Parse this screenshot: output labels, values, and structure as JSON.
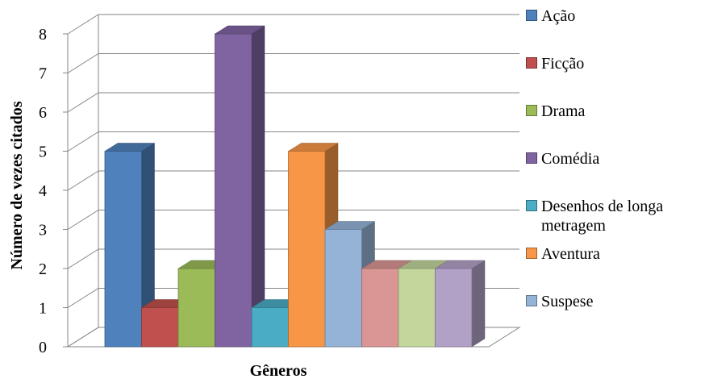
{
  "chart_data": {
    "type": "bar",
    "title": "",
    "xlabel": "Gêneros",
    "ylabel": "Número de vezes citados",
    "ylim": [
      0,
      8
    ],
    "yticks": [
      0,
      1,
      2,
      3,
      4,
      5,
      6,
      7,
      8
    ],
    "grid": true,
    "three_d": true,
    "legend_position": "right",
    "series": [
      {
        "name": "Ação",
        "value": 5,
        "color": "#4F81BD"
      },
      {
        "name": "Ficção",
        "value": 1,
        "color": "#C0504D"
      },
      {
        "name": "Drama",
        "value": 2,
        "color": "#9BBB59"
      },
      {
        "name": "Comédia",
        "value": 8,
        "color": "#8064A2"
      },
      {
        "name": "Desenhos de longa metragem",
        "value": 1,
        "color": "#4BACC6"
      },
      {
        "name": "Aventura",
        "value": 5,
        "color": "#F79646"
      },
      {
        "name": "Suspese",
        "value": 3,
        "color": "#95B3D7"
      },
      {
        "name": "",
        "value": 2,
        "color": "#D99694"
      },
      {
        "name": "",
        "value": 2,
        "color": "#C3D69B"
      },
      {
        "name": "",
        "value": 2,
        "color": "#B2A1C7"
      }
    ]
  }
}
